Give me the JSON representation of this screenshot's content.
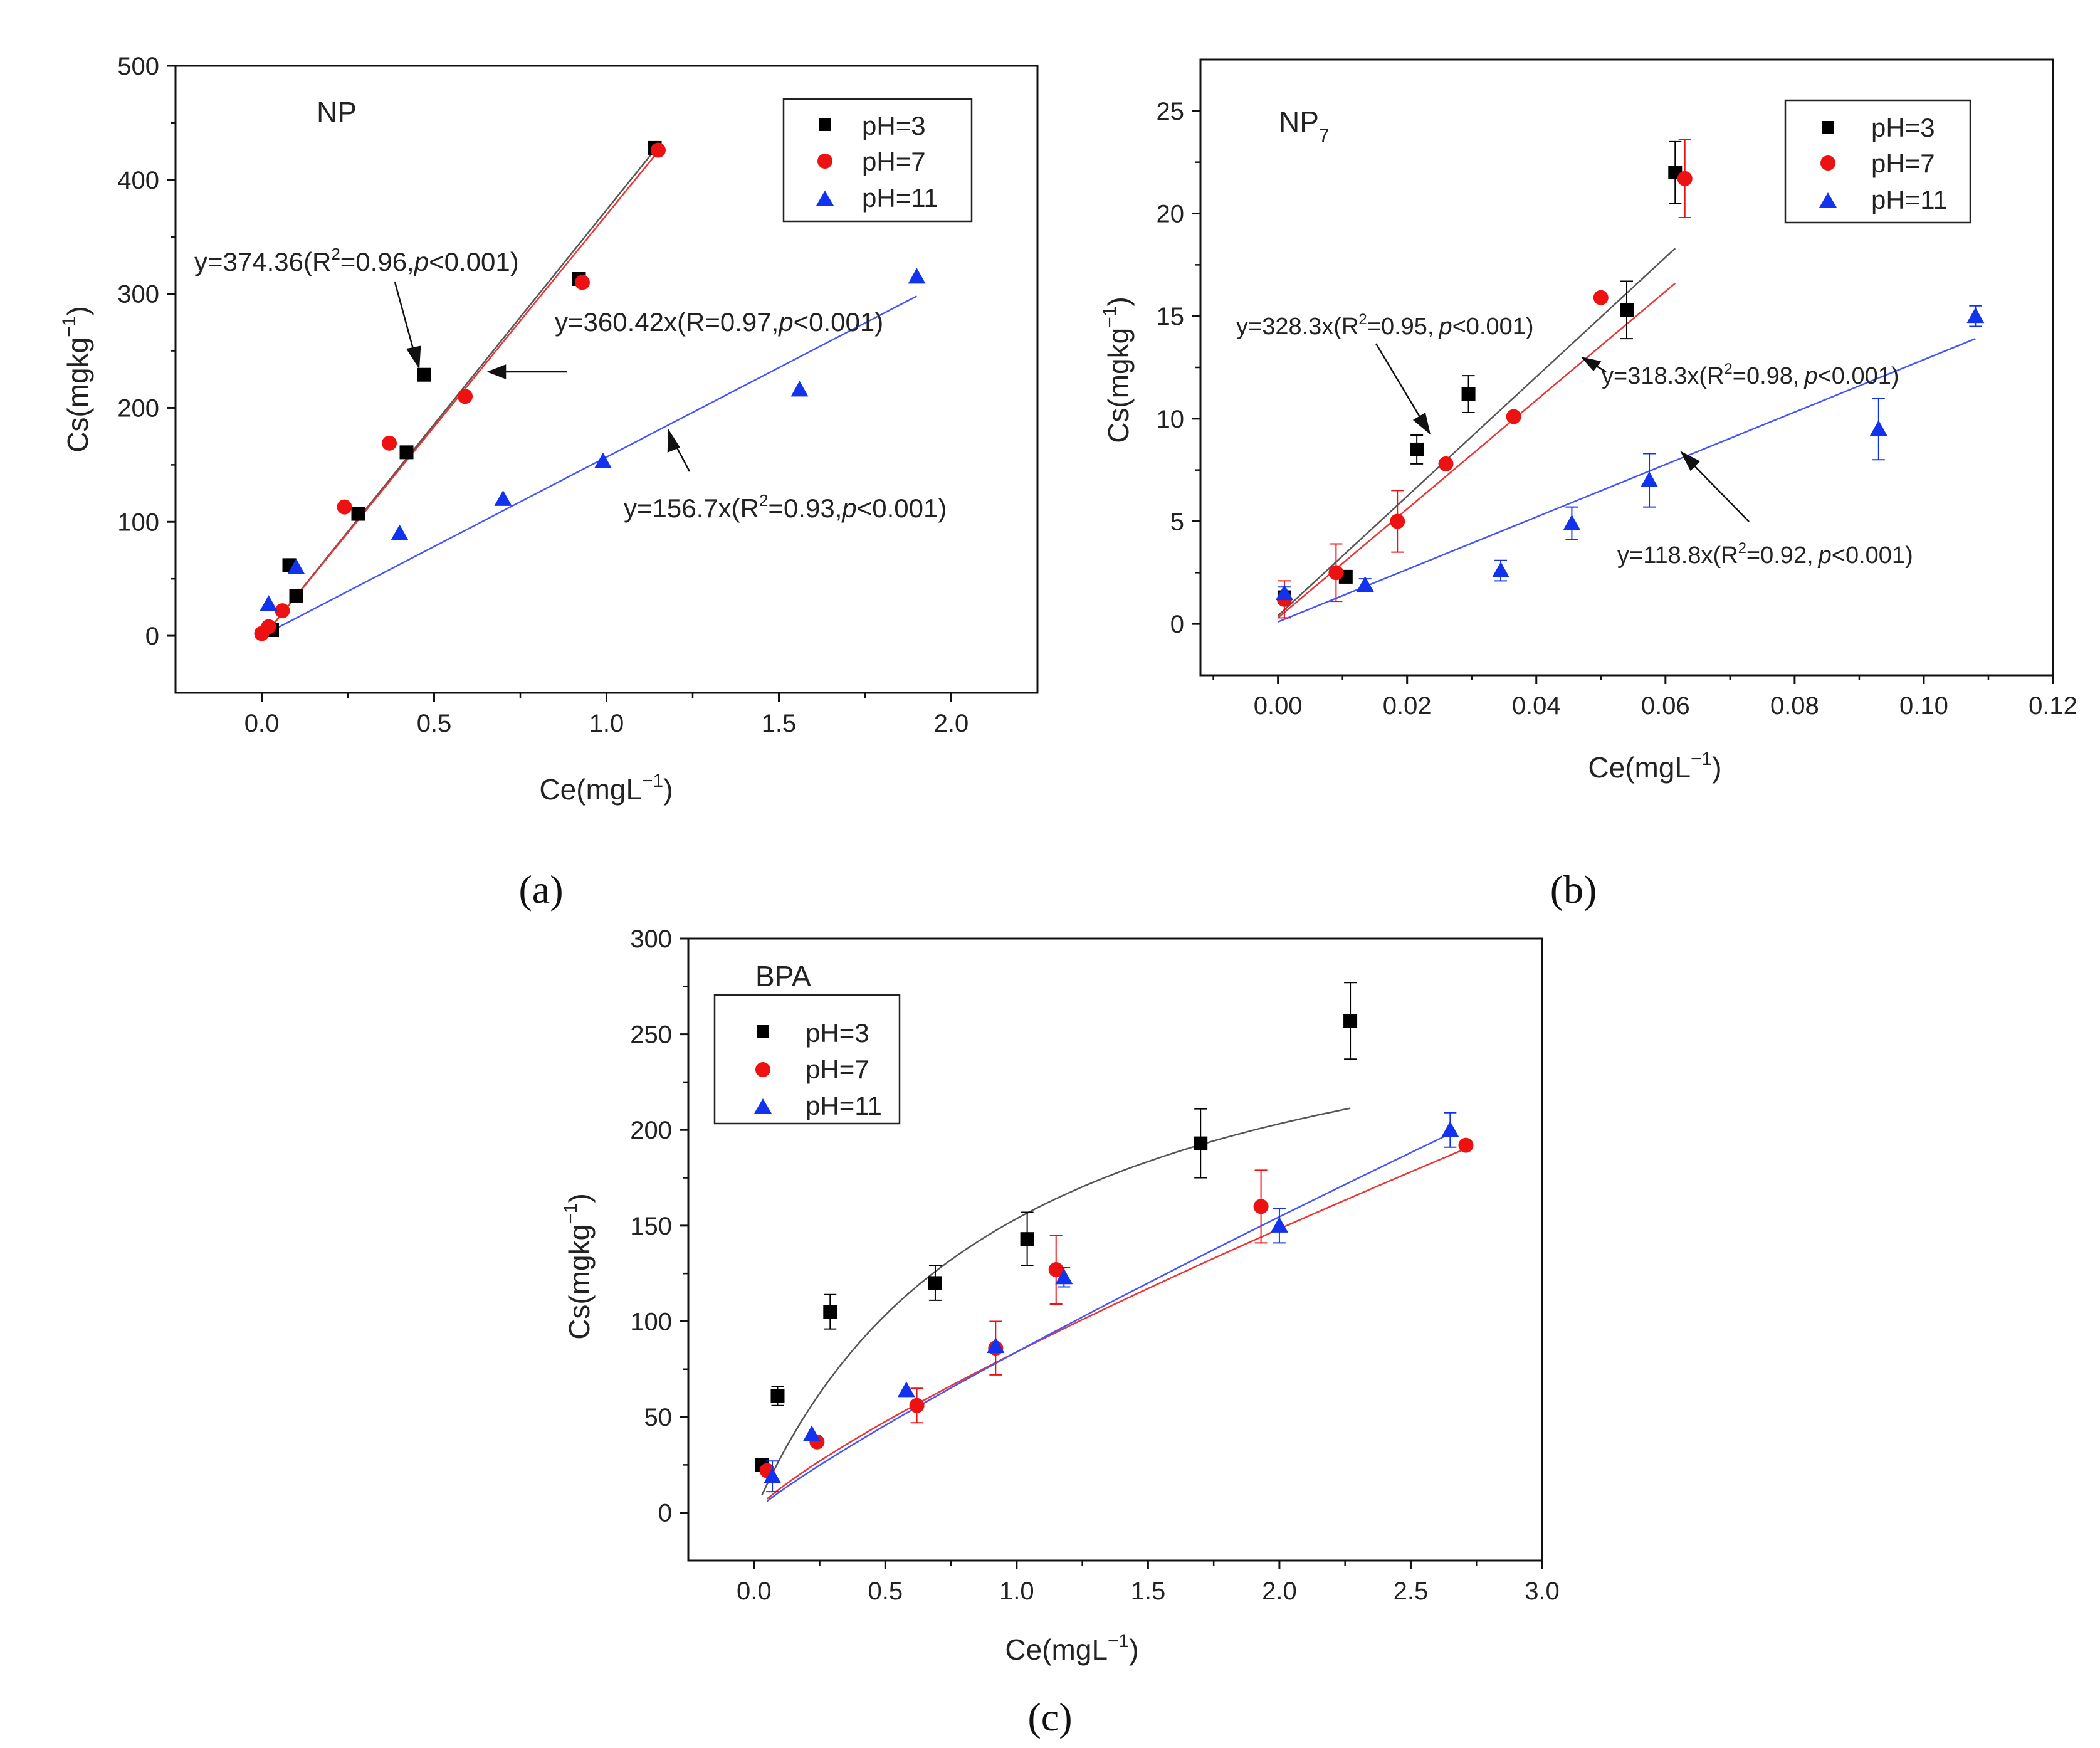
{
  "chart_data": [
    {
      "id": "a",
      "type": "scatter",
      "caption": "(a)",
      "title": "NP",
      "xlabel": "Ce(mgL",
      "xlabel_sup": "−1",
      "xlabel_end": ")",
      "ylabel": "Cs(mgkg",
      "ylabel_sup": "−1",
      "ylabel_end": ")",
      "xlim": [
        -0.25,
        2.25
      ],
      "ylim": [
        -50,
        500
      ],
      "xticks": [
        0.0,
        0.5,
        1.0,
        1.5,
        2.0
      ],
      "xtick_labels": [
        "0.0",
        "0.5",
        "1.0",
        "1.5",
        "2.0"
      ],
      "yticks": [
        0,
        100,
        200,
        300,
        400,
        500
      ],
      "ytick_labels": [
        "0",
        "100",
        "200",
        "300",
        "400",
        "500"
      ],
      "legend": [
        "pH=3",
        "pH=7",
        "pH=11"
      ],
      "legend_position": "top-right",
      "colors": {
        "pH3": "#000000",
        "pH7": "#ee1111",
        "pH11": "#1133ee",
        "fit3": "#555555",
        "fit7": "#ee3333",
        "fit11": "#4455ff"
      },
      "series": [
        {
          "name": "pH=3",
          "marker": "square",
          "x": [
            0.03,
            0.08,
            0.1,
            0.28,
            0.42,
            0.47,
            0.92,
            1.14
          ],
          "y": [
            5,
            62,
            35,
            107,
            161,
            229,
            313,
            428
          ]
        },
        {
          "name": "pH=7",
          "marker": "circle",
          "x": [
            0.0,
            0.02,
            0.06,
            0.24,
            0.37,
            0.59,
            0.93,
            1.15
          ],
          "y": [
            2,
            8,
            22,
            113,
            169,
            210,
            310,
            426
          ]
        },
        {
          "name": "pH=11",
          "marker": "triangle",
          "x": [
            0.02,
            0.1,
            0.4,
            0.7,
            0.99,
            1.56,
            1.9
          ],
          "y": [
            28,
            60,
            90,
            120,
            153,
            216,
            315
          ]
        }
      ],
      "fits": [
        {
          "series": "pH=3",
          "x": [
            0.02,
            1.15
          ],
          "y": [
            5,
            430
          ]
        },
        {
          "series": "pH=7",
          "x": [
            0.02,
            1.15
          ],
          "y": [
            5,
            425
          ]
        },
        {
          "series": "pH=11",
          "x": [
            0.02,
            1.9
          ],
          "y": [
            3,
            298
          ]
        }
      ],
      "annotations": [
        {
          "pre": "y=374.36(R",
          "sup": "2",
          "mid": "=0.96,",
          "ital": "p",
          "post": "<0.001)"
        },
        {
          "pre": "y=360.42x(R",
          "sup": "",
          "mid": "=0.97,",
          "ital": "p",
          "post": "<0.001)"
        },
        {
          "pre": "y=156.7x(R",
          "sup": "2",
          "mid": "=0.93,",
          "ital": "p",
          "post": "<0.001)"
        }
      ]
    },
    {
      "id": "b",
      "type": "scatter",
      "caption": "(b)",
      "title": "NP",
      "title_sub": "7",
      "xlabel": "Ce(mgL",
      "xlabel_sup": "−1",
      "xlabel_end": ")",
      "ylabel": "Cs(mgkg",
      "ylabel_sup": "−1",
      "ylabel_end": ")",
      "xlim": [
        -0.012,
        0.12
      ],
      "ylim": [
        -2.5,
        27.5
      ],
      "xticks": [
        0.0,
        0.02,
        0.04,
        0.06,
        0.08,
        0.1,
        0.12
      ],
      "xtick_labels": [
        "0.00",
        "0.02",
        "0.04",
        "0.06",
        "0.08",
        "0.10",
        "0.12"
      ],
      "yticks": [
        0,
        5,
        10,
        15,
        20,
        25
      ],
      "ytick_labels": [
        "0",
        "5",
        "10",
        "15",
        "20",
        "25"
      ],
      "legend": [
        "pH=3",
        "pH=7",
        "pH=11"
      ],
      "legend_position": "top-right",
      "series": [
        {
          "name": "pH=3",
          "marker": "square",
          "x": [
            0.001,
            0.0105,
            0.0215,
            0.0295,
            0.054,
            0.0615
          ],
          "y": [
            1.3,
            2.3,
            8.5,
            11.2,
            15.3,
            22.0
          ],
          "err": [
            0.3,
            0.3,
            0.7,
            0.9,
            1.4,
            1.5
          ]
        },
        {
          "name": "pH=7",
          "marker": "circle",
          "x": [
            0.001,
            0.009,
            0.0185,
            0.026,
            0.0365,
            0.05,
            0.063
          ],
          "y": [
            1.2,
            2.5,
            5.0,
            7.8,
            10.1,
            15.9,
            21.7
          ],
          "err": [
            0.9,
            1.4,
            1.5,
            0.0,
            0.0,
            0.0,
            1.9
          ]
        },
        {
          "name": "pH=11",
          "marker": "triangle",
          "x": [
            0.001,
            0.0135,
            0.0345,
            0.0455,
            0.0575,
            0.093,
            0.108
          ],
          "y": [
            1.5,
            1.9,
            2.6,
            4.9,
            7.0,
            9.5,
            15.0
          ],
          "err": [
            0.3,
            0.3,
            0.5,
            0.8,
            1.3,
            1.5,
            0.5
          ]
        }
      ],
      "fits": [
        {
          "series": "pH=3",
          "x": [
            0.0,
            0.0615
          ],
          "y": [
            0.4,
            18.3
          ]
        },
        {
          "series": "pH=7",
          "x": [
            0.0,
            0.0615
          ],
          "y": [
            0.3,
            16.6
          ]
        },
        {
          "series": "pH=11",
          "x": [
            0.0,
            0.108
          ],
          "y": [
            0.1,
            13.9
          ]
        }
      ],
      "annotations": [
        {
          "pre": "y=328.3x(R",
          "sup": "2",
          "mid": "=0.95,",
          "ital": "p",
          "post": "<0.001)"
        },
        {
          "pre": "y=318.3x(R",
          "sup": "2",
          "mid": "=0.98,",
          "ital": "p",
          "post": "<0.001)"
        },
        {
          "pre": "y=118.8x(R",
          "sup": "2",
          "mid": "=0.92,",
          "ital": "p",
          "post": "<0.001)"
        }
      ]
    },
    {
      "id": "c",
      "type": "scatter",
      "caption": "(c)",
      "title": "BPA",
      "xlabel": "Ce(mgL",
      "xlabel_sup": "−1",
      "xlabel_end": ")",
      "ylabel": "Cs(mgkg",
      "ylabel_sup": "−1",
      "ylabel_end": ")",
      "xlim": [
        -0.25,
        3.0
      ],
      "ylim": [
        -25,
        300
      ],
      "xticks": [
        0.0,
        0.5,
        1.0,
        1.5,
        2.0,
        2.5,
        3.0
      ],
      "xtick_labels": [
        "0.0",
        "0.5",
        "1.0",
        "1.5",
        "2.0",
        "2.5",
        "3.0"
      ],
      "yticks": [
        0,
        50,
        100,
        150,
        200,
        250,
        300
      ],
      "ytick_labels": [
        "0",
        "50",
        "100",
        "150",
        "200",
        "250",
        "300"
      ],
      "legend": [
        "pH=3",
        "pH=7",
        "pH=11"
      ],
      "legend_position": "top-left",
      "series": [
        {
          "name": "pH=3",
          "marker": "square",
          "x": [
            0.03,
            0.09,
            0.29,
            0.69,
            1.04,
            1.7,
            2.27
          ],
          "y": [
            25,
            61,
            105,
            120,
            143,
            193,
            257
          ],
          "err": [
            0,
            5,
            9,
            9,
            14,
            18,
            20
          ]
        },
        {
          "name": "pH=7",
          "marker": "circle",
          "x": [
            0.05,
            0.24,
            0.62,
            0.92,
            1.15,
            1.93,
            2.71
          ],
          "y": [
            22,
            37,
            56,
            86,
            127,
            160,
            192
          ],
          "err": [
            0,
            0,
            9,
            14,
            18,
            19,
            0
          ]
        },
        {
          "name": "pH=11",
          "marker": "triangle",
          "x": [
            0.07,
            0.22,
            0.58,
            0.92,
            1.18,
            2.0,
            2.65
          ],
          "y": [
            19,
            41,
            64,
            87,
            123,
            150,
            200
          ],
          "err": [
            8,
            0,
            0,
            0,
            5,
            9,
            9
          ]
        }
      ],
      "fit_curves": [
        {
          "series": "pH=3",
          "model": "langmuir",
          "qmax": 300,
          "kl": 1.05,
          "x_range": [
            0.03,
            2.27
          ]
        },
        {
          "series": "pH=7",
          "model": "freundlich",
          "kf": 84,
          "n_inv": 0.82,
          "x_range": [
            0.05,
            2.71
          ]
        },
        {
          "series": "pH=11",
          "model": "freundlich",
          "kf": 84,
          "n_inv": 0.88,
          "x_range": [
            0.05,
            2.65
          ]
        }
      ]
    }
  ]
}
